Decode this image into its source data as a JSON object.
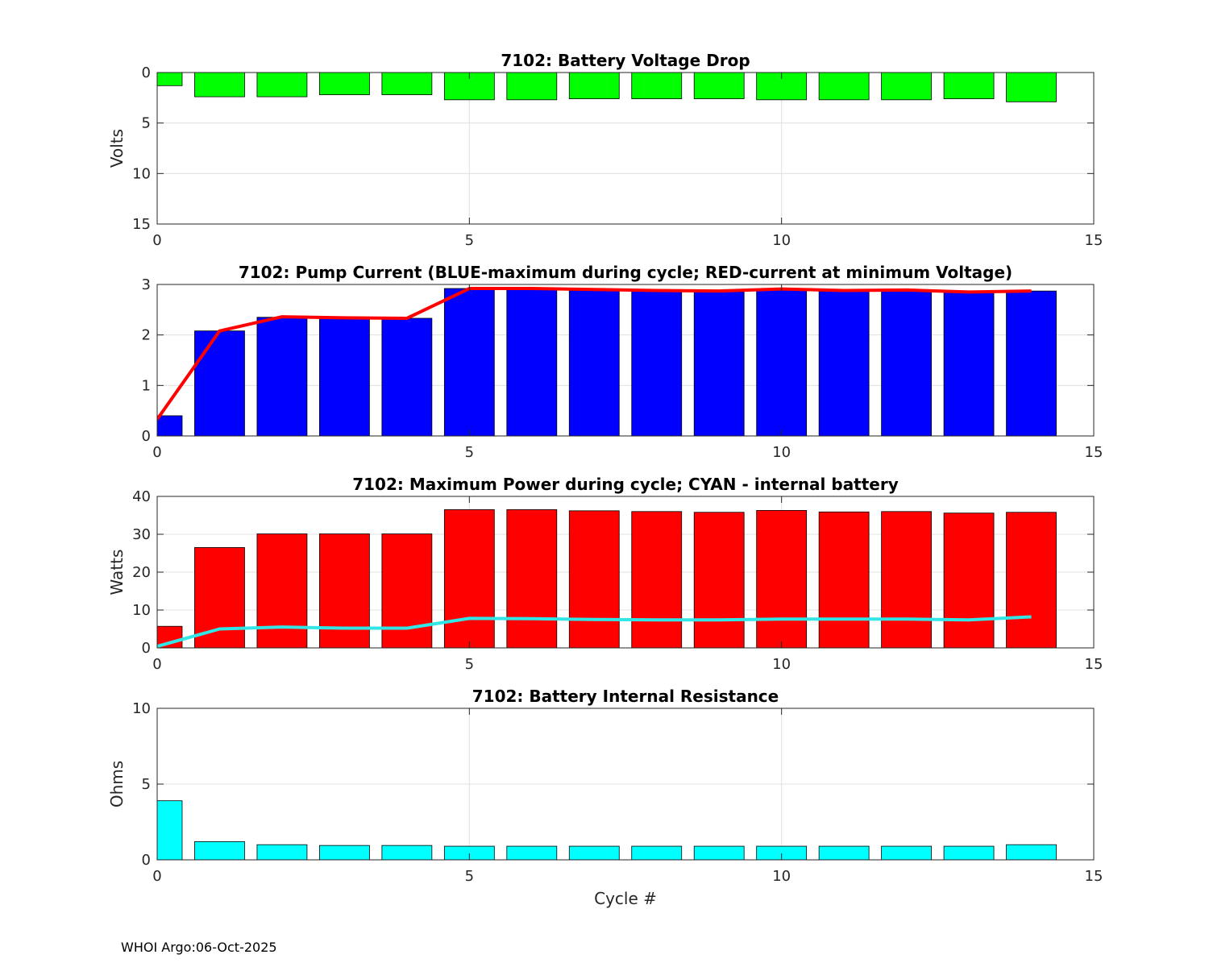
{
  "footer": {
    "text": "WHOI Argo:06-Oct-2025"
  },
  "chart_data": [
    {
      "type": "bar",
      "title": "7102: Battery Voltage Drop",
      "xlabel": "",
      "ylabel": "Volts",
      "xlim": [
        0,
        15
      ],
      "ylim": [
        0,
        15
      ],
      "y_reversed": true,
      "xticks": [
        0,
        5,
        10,
        15
      ],
      "yticks": [
        0,
        5,
        10,
        15
      ],
      "grid": true,
      "bar_color": "#00ff00",
      "x": [
        0,
        1,
        2,
        3,
        4,
        5,
        6,
        7,
        8,
        9,
        10,
        11,
        12,
        13,
        14
      ],
      "values": [
        1.3,
        2.4,
        2.4,
        2.2,
        2.2,
        2.7,
        2.7,
        2.6,
        2.6,
        2.6,
        2.7,
        2.7,
        2.7,
        2.6,
        2.9
      ]
    },
    {
      "type": "bar",
      "title": "7102: Pump Current (BLUE-maximum during cycle; RED-current at minimum Voltage)",
      "xlabel": "",
      "ylabel": "",
      "xlim": [
        0,
        15
      ],
      "ylim": [
        0,
        3
      ],
      "xticks": [
        0,
        5,
        10,
        15
      ],
      "yticks": [
        0,
        1,
        2,
        3
      ],
      "grid": true,
      "bar_color": "#0000ff",
      "line_color": "#ff0000",
      "x": [
        0,
        1,
        2,
        3,
        4,
        5,
        6,
        7,
        8,
        9,
        10,
        11,
        12,
        13,
        14
      ],
      "values": [
        0.4,
        2.08,
        2.35,
        2.33,
        2.33,
        2.92,
        2.92,
        2.88,
        2.87,
        2.86,
        2.9,
        2.87,
        2.88,
        2.85,
        2.87
      ],
      "line_values": [
        0.33,
        2.08,
        2.36,
        2.34,
        2.33,
        2.92,
        2.92,
        2.9,
        2.88,
        2.87,
        2.91,
        2.88,
        2.89,
        2.85,
        2.87
      ]
    },
    {
      "type": "bar",
      "title": "7102: Maximum Power during cycle; CYAN - internal battery",
      "xlabel": "",
      "ylabel": "Watts",
      "xlim": [
        0,
        15
      ],
      "ylim": [
        0,
        40
      ],
      "xticks": [
        0,
        5,
        10,
        15
      ],
      "yticks": [
        0,
        10,
        20,
        30,
        40
      ],
      "grid": true,
      "bar_color": "#ff0000",
      "line_color": "#33e6e6",
      "x": [
        0,
        1,
        2,
        3,
        4,
        5,
        6,
        7,
        8,
        9,
        10,
        11,
        12,
        13,
        14
      ],
      "values": [
        5.7,
        26.5,
        30.1,
        30.1,
        30.1,
        36.5,
        36.5,
        36.2,
        36.0,
        35.8,
        36.3,
        35.9,
        36.0,
        35.6,
        35.8
      ],
      "line_values": [
        0.4,
        5.0,
        5.5,
        5.2,
        5.2,
        7.8,
        7.7,
        7.5,
        7.4,
        7.4,
        7.6,
        7.6,
        7.6,
        7.4,
        8.2
      ]
    },
    {
      "type": "bar",
      "title": "7102: Battery Internal Resistance",
      "xlabel": "Cycle #",
      "ylabel": "Ohms",
      "xlim": [
        0,
        15
      ],
      "ylim": [
        0,
        10
      ],
      "xticks": [
        0,
        5,
        10,
        15
      ],
      "yticks": [
        0,
        5,
        10
      ],
      "grid": true,
      "bar_color": "#00ffff",
      "x": [
        0,
        1,
        2,
        3,
        4,
        5,
        6,
        7,
        8,
        9,
        10,
        11,
        12,
        13,
        14
      ],
      "values": [
        3.9,
        1.2,
        1.0,
        0.95,
        0.95,
        0.9,
        0.9,
        0.9,
        0.9,
        0.9,
        0.9,
        0.9,
        0.9,
        0.9,
        1.0
      ]
    }
  ]
}
